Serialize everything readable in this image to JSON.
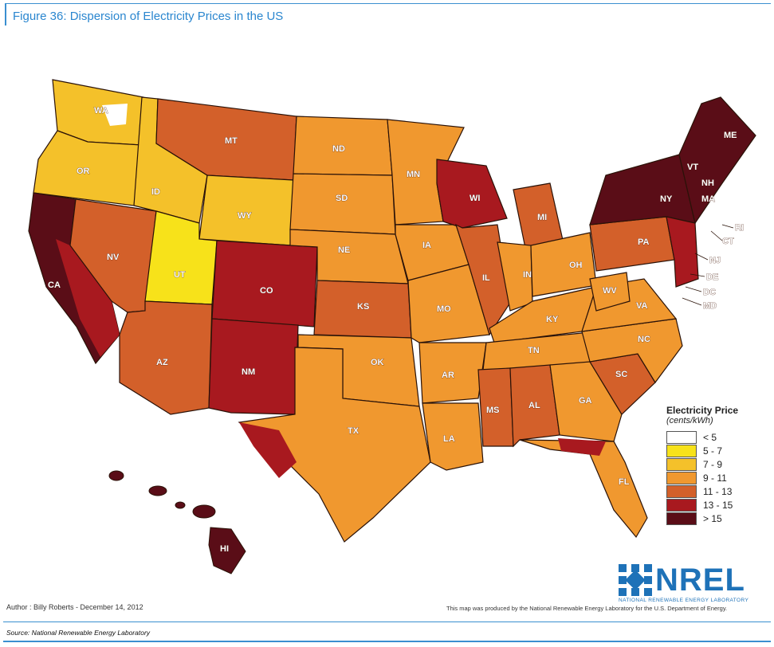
{
  "figure_title": "Figure 36: Dispersion of Electricity Prices in the US",
  "legend": {
    "title": "Electricity Price",
    "subtitle": "(cents/kWh)",
    "items": [
      {
        "label": "< 5",
        "color": "#ffffff"
      },
      {
        "label": "5 - 7",
        "color": "#f7e21a"
      },
      {
        "label": "7 - 9",
        "color": "#f4c12a"
      },
      {
        "label": "9 - 11",
        "color": "#f0982f"
      },
      {
        "label": "11 - 13",
        "color": "#d3602a"
      },
      {
        "label": "13 - 15",
        "color": "#a8191f"
      },
      {
        "label": "> 15",
        "color": "#5a0d17"
      }
    ]
  },
  "state_labels": {
    "WA": "WA",
    "OR": "OR",
    "CA": "CA",
    "NV": "NV",
    "ID": "ID",
    "MT": "MT",
    "WY": "WY",
    "UT": "UT",
    "AZ": "AZ",
    "CO": "CO",
    "NM": "NM",
    "ND": "ND",
    "SD": "SD",
    "NE": "NE",
    "KS": "KS",
    "OK": "OK",
    "TX": "TX",
    "MN": "MN",
    "IA": "IA",
    "MO": "MO",
    "AR": "AR",
    "LA": "LA",
    "WI": "WI",
    "IL": "IL",
    "MI": "MI",
    "IN": "IN",
    "OH": "OH",
    "KY": "KY",
    "TN": "TN",
    "MS": "MS",
    "AL": "AL",
    "GA": "GA",
    "FL": "FL",
    "SC": "SC",
    "NC": "NC",
    "VA": "VA",
    "WV": "WV",
    "PA": "PA",
    "NY": "NY",
    "VT": "VT",
    "NH": "NH",
    "ME": "ME",
    "MA": "MA",
    "RI": "RI",
    "CT": "CT",
    "NJ": "NJ",
    "DE": "DE",
    "DC": "DC",
    "MD": "MD",
    "HI": "HI"
  },
  "brand": {
    "name": "NREL",
    "subtitle": "NATIONAL RENEWABLE ENERGY LABORATORY",
    "color": "#1e72b8"
  },
  "author": "Author : Billy Roberts - December 14, 2012",
  "produced_note": "This map was produced by the National Renewable Energy Laboratory for the U.S. Department of Energy.",
  "source": "Source: National Renewable Energy Laboratory"
}
